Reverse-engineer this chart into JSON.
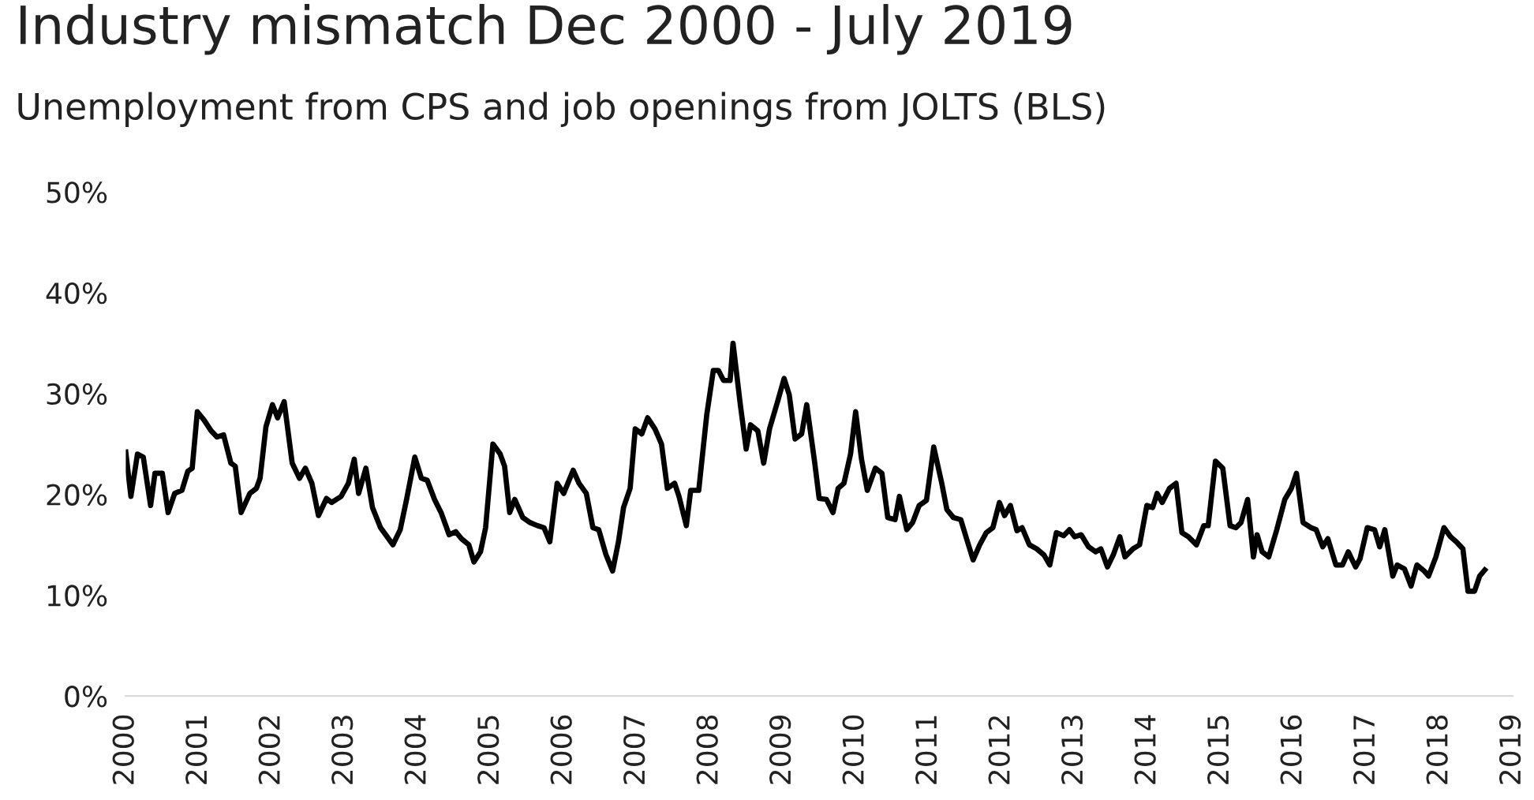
{
  "chart_data": {
    "type": "line",
    "title": "Industry mismatch Dec 2000 - July 2019",
    "subtitle": "Unemployment from CPS and job openings from JOLTS (BLS)",
    "x": [
      2000.0,
      2000.07,
      2000.16,
      2000.24,
      2000.34,
      2000.4,
      2000.5,
      2000.58,
      2000.67,
      2000.77,
      2000.85,
      2000.91,
      2000.98,
      2001.07,
      2001.17,
      2001.25,
      2001.34,
      2001.44,
      2001.5,
      2001.58,
      2001.7,
      2001.79,
      2001.84,
      2001.92,
      2002.01,
      2002.08,
      2002.17,
      2002.28,
      2002.38,
      2002.46,
      2002.55,
      2002.64,
      2002.75,
      2002.82,
      2002.95,
      2003.05,
      2003.13,
      2003.19,
      2003.29,
      2003.38,
      2003.49,
      2003.58,
      2003.66,
      2003.76,
      2003.85,
      2003.96,
      2004.05,
      2004.13,
      2004.23,
      2004.32,
      2004.43,
      2004.52,
      2004.6,
      2004.7,
      2004.77,
      2004.86,
      2004.93,
      2005.03,
      2005.13,
      2005.19,
      2005.26,
      2005.33,
      2005.44,
      2005.54,
      2005.64,
      2005.73,
      2005.81,
      2005.91,
      2006.0,
      2006.13,
      2006.21,
      2006.31,
      2006.4,
      2006.48,
      2006.58,
      2006.67,
      2006.75,
      2006.82,
      2006.91,
      2006.98,
      2007.07,
      2007.15,
      2007.25,
      2007.34,
      2007.42,
      2007.52,
      2007.58,
      2007.68,
      2007.74,
      2007.85,
      2007.96,
      2008.05,
      2008.12,
      2008.19,
      2008.28,
      2008.32,
      2008.42,
      2008.5,
      2008.56,
      2008.66,
      2008.74,
      2008.82,
      2008.93,
      2009.02,
      2009.09,
      2009.17,
      2009.26,
      2009.33,
      2009.44,
      2009.5,
      2009.6,
      2009.69,
      2009.76,
      2009.84,
      2009.93,
      2010.0,
      2010.08,
      2010.16,
      2010.27,
      2010.36,
      2010.44,
      2010.54,
      2010.6,
      2010.7,
      2010.78,
      2010.87,
      2010.97,
      2011.07,
      2011.18,
      2011.25,
      2011.34,
      2011.44,
      2011.52,
      2011.61,
      2011.7,
      2011.79,
      2011.88,
      2011.97,
      2012.04,
      2012.12,
      2012.21,
      2012.28,
      2012.38,
      2012.48,
      2012.58,
      2012.66,
      2012.75,
      2012.85,
      2012.93,
      2013.0,
      2013.09,
      2013.19,
      2013.29,
      2013.36,
      2013.45,
      2013.53,
      2013.62,
      2013.69,
      2013.8,
      2013.89,
      2013.99,
      2014.07,
      2014.13,
      2014.2,
      2014.3,
      2014.39,
      2014.47,
      2014.56,
      2014.67,
      2014.77,
      2014.83,
      2014.93,
      2015.03,
      2015.13,
      2015.21,
      2015.28,
      2015.37,
      2015.45,
      2015.5,
      2015.57,
      2015.66,
      2015.77,
      2015.88,
      2015.97,
      2016.04,
      2016.13,
      2016.24,
      2016.31,
      2016.4,
      2016.47,
      2016.58,
      2016.67,
      2016.75,
      2016.85,
      2016.91,
      2017.01,
      2017.11,
      2017.18,
      2017.25,
      2017.36,
      2017.42,
      2017.52,
      2017.61,
      2017.69,
      2017.79,
      2017.85,
      2017.95,
      2018.06,
      2018.15,
      2018.23,
      2018.32,
      2018.39,
      2018.48,
      2018.55,
      2018.62
    ],
    "series": [
      {
        "color": "#000000",
        "values": [
          24.2,
          19.8,
          24.0,
          23.7,
          18.9,
          22.1,
          22.1,
          18.2,
          20.1,
          20.4,
          22.3,
          22.6,
          28.2,
          27.4,
          26.3,
          25.7,
          25.9,
          23.1,
          22.8,
          18.2,
          20.1,
          20.6,
          21.6,
          26.7,
          28.9,
          27.6,
          29.2,
          23.1,
          21.6,
          22.6,
          21.1,
          17.9,
          19.6,
          19.2,
          19.8,
          21.1,
          23.5,
          20.1,
          22.6,
          18.7,
          16.7,
          15.8,
          15.0,
          16.5,
          19.6,
          23.7,
          21.6,
          21.4,
          19.5,
          18.2,
          16.0,
          16.3,
          15.6,
          15.0,
          13.3,
          14.3,
          16.7,
          25.0,
          24.0,
          22.8,
          18.2,
          19.5,
          17.7,
          17.2,
          16.9,
          16.7,
          15.3,
          21.1,
          20.1,
          22.4,
          21.1,
          20.1,
          16.7,
          16.5,
          14.0,
          12.4,
          15.3,
          18.7,
          20.6,
          26.5,
          26.0,
          27.6,
          26.5,
          25.0,
          20.6,
          21.1,
          19.8,
          16.9,
          20.4,
          20.4,
          27.9,
          32.3,
          32.3,
          31.3,
          31.3,
          35.0,
          28.9,
          24.5,
          26.9,
          26.3,
          23.1,
          26.5,
          29.2,
          31.5,
          29.9,
          25.5,
          26.0,
          28.9,
          23.1,
          19.6,
          19.5,
          18.2,
          20.6,
          21.1,
          24.0,
          28.2,
          23.5,
          20.4,
          22.6,
          22.1,
          17.7,
          17.5,
          19.8,
          16.5,
          17.2,
          18.9,
          19.4,
          24.7,
          21.1,
          18.5,
          17.7,
          17.5,
          15.6,
          13.5,
          15.0,
          16.2,
          16.7,
          19.2,
          17.9,
          18.9,
          16.4,
          16.7,
          15.0,
          14.6,
          14.0,
          13.0,
          16.2,
          15.9,
          16.5,
          15.8,
          16.0,
          14.8,
          14.3,
          14.6,
          12.8,
          14.0,
          15.8,
          13.8,
          14.6,
          15.0,
          18.9,
          18.7,
          20.1,
          19.2,
          20.6,
          21.1,
          16.2,
          15.8,
          15.0,
          16.9,
          16.9,
          23.3,
          22.6,
          16.9,
          16.7,
          17.2,
          19.5,
          13.8,
          16.0,
          14.3,
          13.8,
          16.5,
          19.5,
          20.6,
          22.1,
          17.2,
          16.7,
          16.5,
          14.8,
          15.6,
          13.0,
          13.0,
          14.3,
          12.8,
          13.6,
          16.7,
          16.5,
          14.8,
          16.5,
          11.9,
          13.0,
          12.6,
          10.9,
          13.0,
          12.4,
          11.9,
          13.8,
          16.7,
          15.8,
          15.3,
          14.6,
          10.4,
          10.4,
          11.9,
          12.5
        ]
      }
    ],
    "xlim": [
      2000,
      2019
    ],
    "xticks": [
      2000,
      2001,
      2002,
      2003,
      2004,
      2005,
      2006,
      2007,
      2008,
      2009,
      2010,
      2011,
      2012,
      2013,
      2014,
      2015,
      2016,
      2017,
      2018,
      2019
    ],
    "ylim": [
      0,
      50
    ],
    "yticks": [
      {
        "value": 0,
        "label": "0%"
      },
      {
        "value": 10,
        "label": "10%"
      },
      {
        "value": 20,
        "label": "20%"
      },
      {
        "value": 30,
        "label": "30%"
      },
      {
        "value": 40,
        "label": "40%"
      },
      {
        "value": 50,
        "label": "50%"
      }
    ],
    "grid": false,
    "marker": "none",
    "line_style": "solid"
  }
}
